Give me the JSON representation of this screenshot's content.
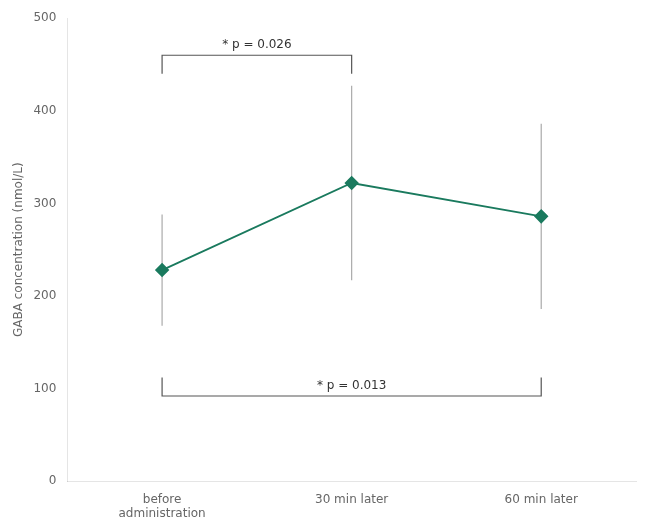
{
  "chart_data": {
    "type": "line",
    "categories": [
      "before\nadministration",
      "30 min later",
      "60 min later"
    ],
    "values": [
      228,
      322,
      286
    ],
    "errors": [
      60,
      105,
      100
    ],
    "color": "#1a7a5e",
    "marker": "diamond",
    "ylabel": "GABA concentration (nmol/L)",
    "ylim": [
      0,
      500
    ],
    "yticks": [
      0,
      100,
      200,
      300,
      400,
      500
    ],
    "grid": false,
    "legend": false,
    "annotations": [
      {
        "label": "* p = 0.026",
        "from": "before\nadministration",
        "to": "30 min later",
        "y": 460,
        "end": 440
      },
      {
        "label": "* p = 0.013",
        "from": "before\nadministration",
        "to": "60 min later",
        "y": 92,
        "end": 112
      }
    ]
  }
}
